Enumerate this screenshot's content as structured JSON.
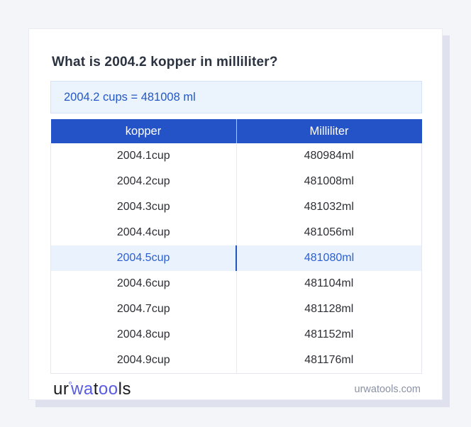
{
  "question": "What is 2004.2 kopper in milliliter?",
  "result": "2004.2 cups = 481008 ml",
  "table": {
    "headers": [
      "kopper",
      "Milliliter"
    ],
    "rows": [
      [
        "2004.1cup",
        "480984ml"
      ],
      [
        "2004.2cup",
        "481008ml"
      ],
      [
        "2004.3cup",
        "481032ml"
      ],
      [
        "2004.4cup",
        "481056ml"
      ],
      [
        "2004.5cup",
        "481080ml"
      ],
      [
        "2004.6cup",
        "481104ml"
      ],
      [
        "2004.7cup",
        "481128ml"
      ],
      [
        "2004.8cup",
        "481152ml"
      ],
      [
        "2004.9cup",
        "481176ml"
      ]
    ],
    "highlighted_index": 4
  },
  "footer": {
    "logo": {
      "part1": "ur",
      "ring": "°",
      "part2": "wa",
      "part3": "t",
      "part4": "oo",
      "part5": "ls"
    },
    "domain": "urwatools.com"
  },
  "colors": {
    "page_background": "#f4f5f9",
    "card_background": "#ffffff",
    "header_background": "#2453c8",
    "header_text": "#ffffff",
    "result_box_background": "#ebf3fd",
    "result_box_border": "#d3e2f7",
    "accent_blue": "#2458c6",
    "highlight_row_background": "#eaf2fe",
    "highlight_row_text": "#2b5fd0",
    "logo_blue": "#585be4",
    "body_text": "#2e2f35",
    "domain_text": "#8b92a5"
  }
}
